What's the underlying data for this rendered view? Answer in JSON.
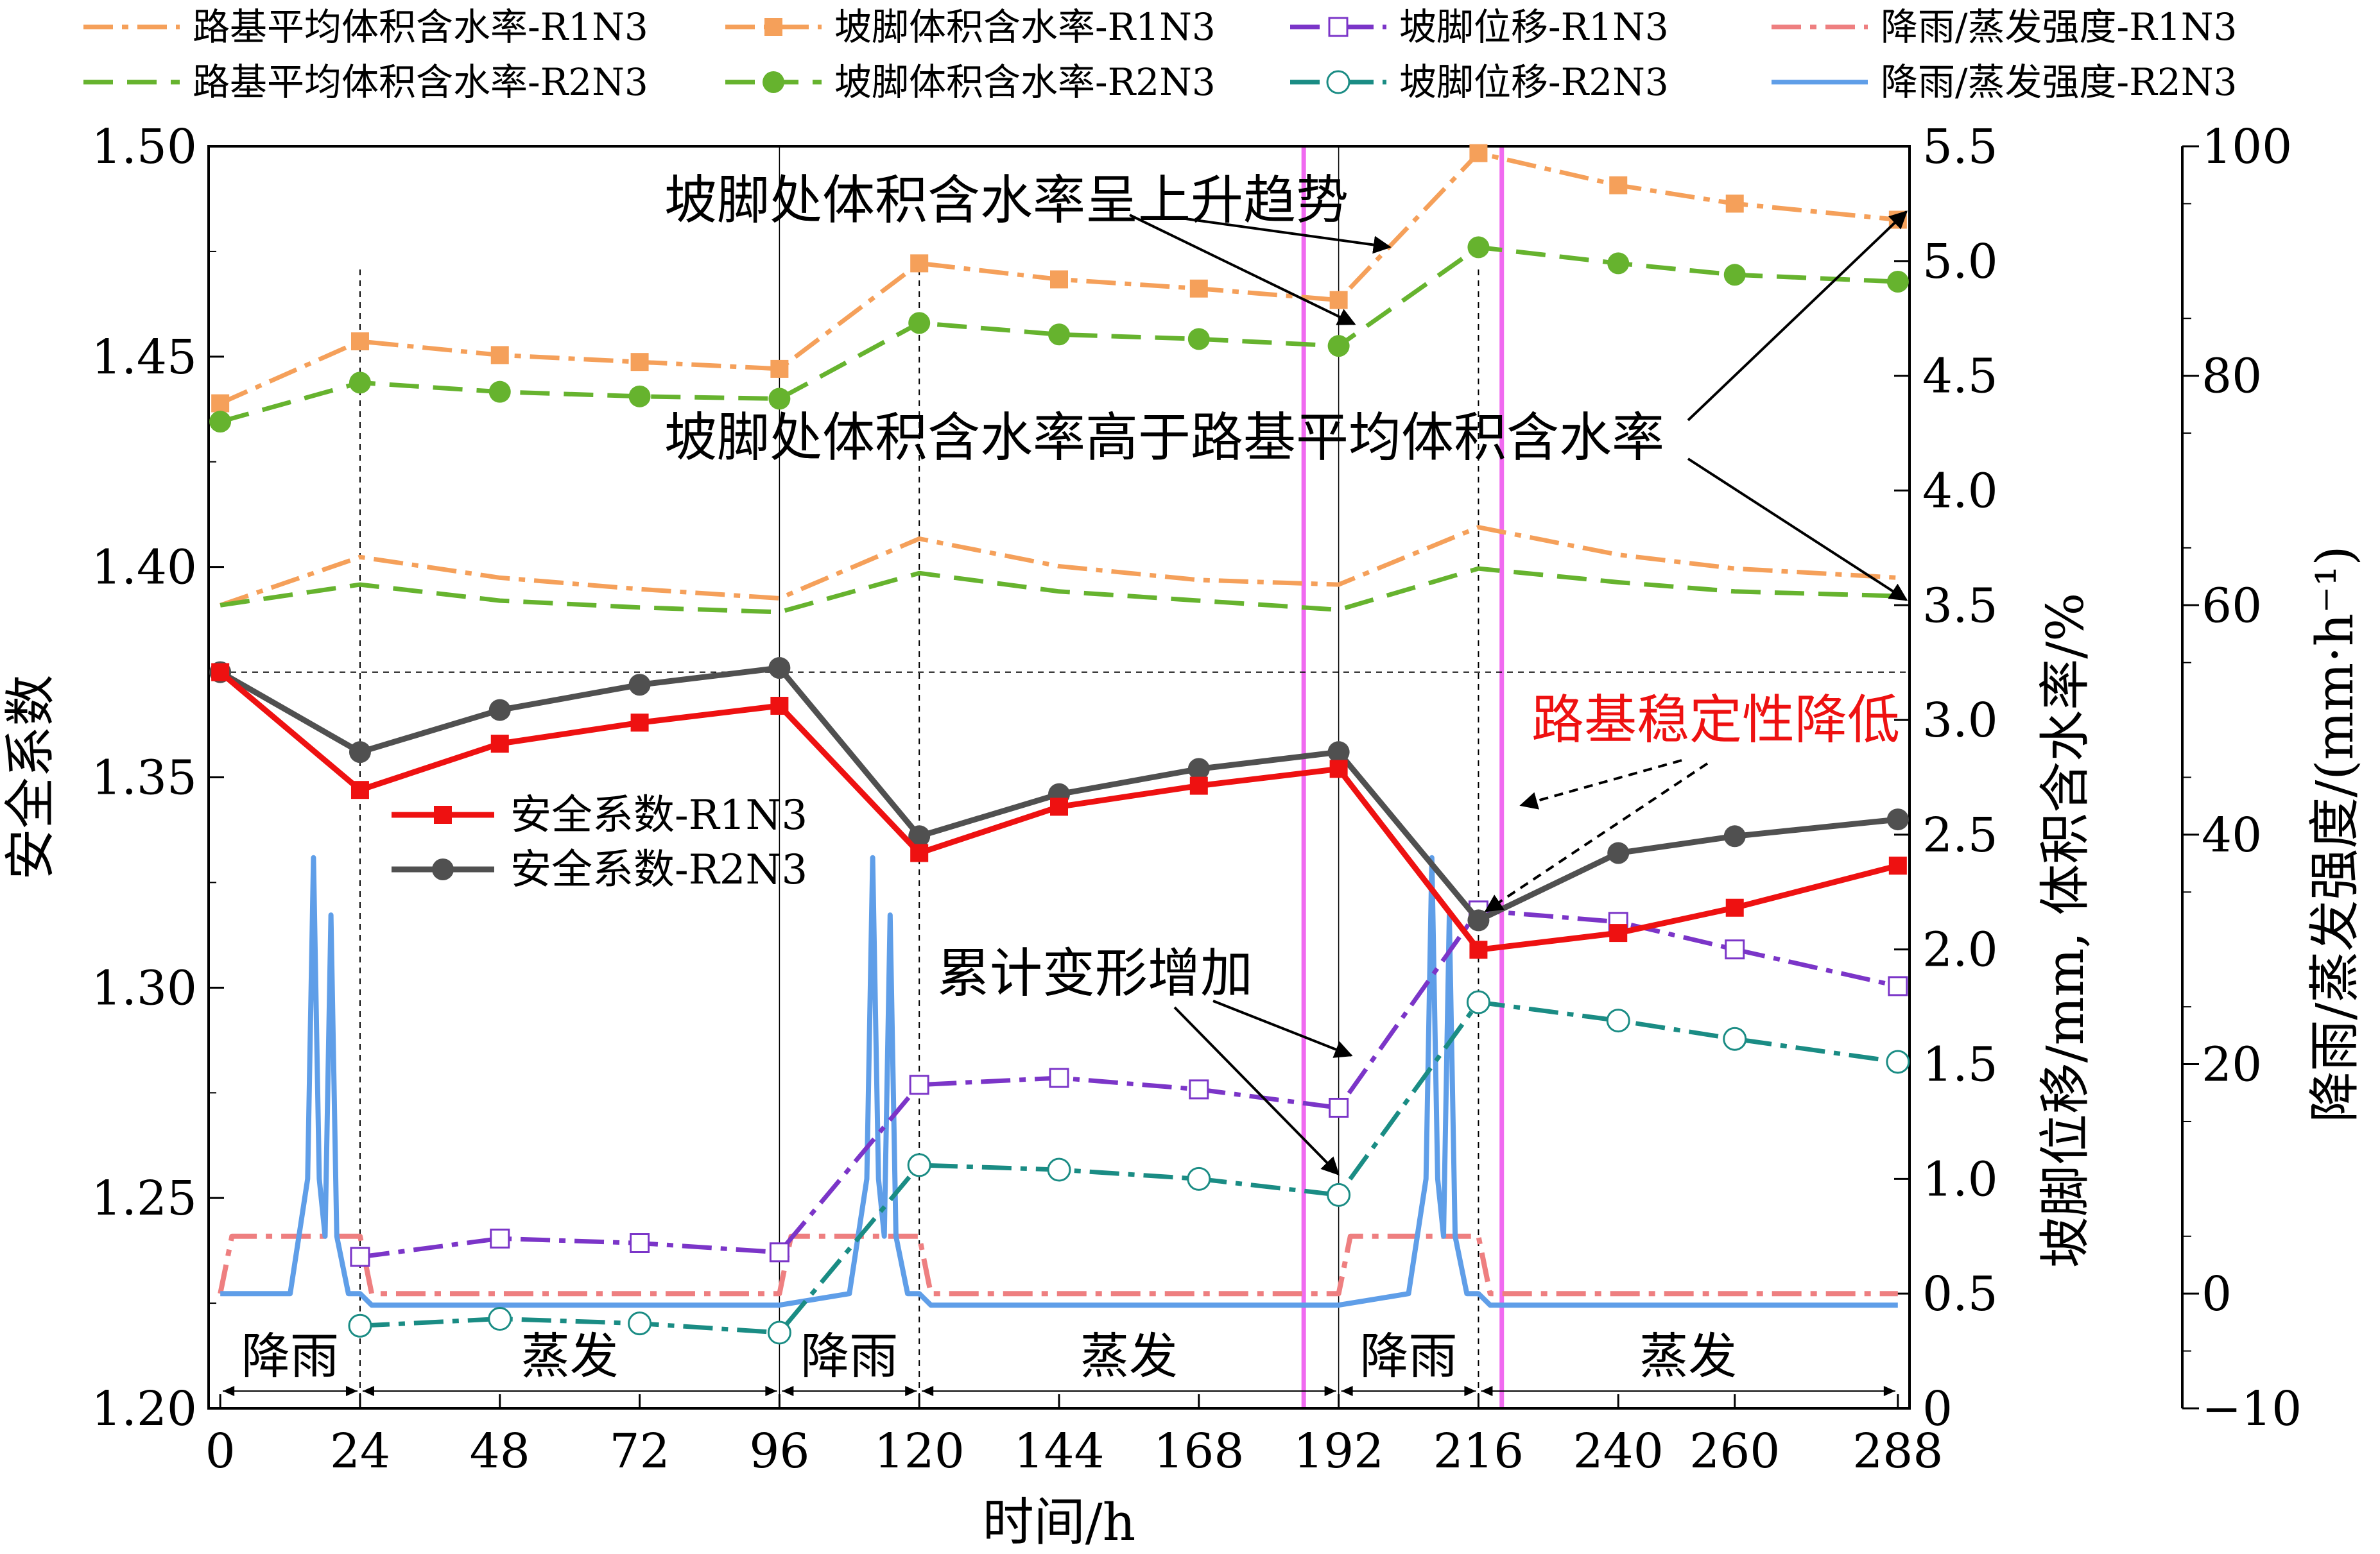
{
  "chart_data": {
    "type": "line",
    "xlabel": "时间/h",
    "ylabel_left": "安全系数",
    "ylabel_right1": "坡脚位移/mm, 体积含水率/%",
    "ylabel_right2": "降雨/蒸发强度/(mm·h⁻¹)",
    "xlim": [
      -2,
      290
    ],
    "ylim_left": [
      1.2,
      1.5
    ],
    "ylim_right1": [
      0,
      5.5
    ],
    "ylim_right2": [
      -10,
      100
    ],
    "x_ticks": [
      0,
      24,
      48,
      72,
      96,
      120,
      144,
      168,
      192,
      216,
      240,
      260,
      288
    ],
    "y_left_ticks": [
      1.2,
      1.25,
      1.3,
      1.35,
      1.4,
      1.45,
      1.5
    ],
    "y_right1_ticks": [
      0,
      0.5,
      1.0,
      1.5,
      2.0,
      2.5,
      3.0,
      3.5,
      4.0,
      4.5,
      5.0,
      5.5
    ],
    "y_right2_ticks": [
      -10,
      0,
      20,
      40,
      60,
      80,
      100
    ],
    "y_left_tick_labels": [
      "1.20",
      "1.25",
      "1.30",
      "1.35",
      "1.40",
      "1.45",
      "1.50"
    ],
    "y_right1_tick_labels": [
      "0",
      "0.5",
      "1.0",
      "1.5",
      "2.0",
      "2.5",
      "3.0",
      "3.5",
      "4.0",
      "4.5",
      "5.0",
      "5.5"
    ],
    "y_right2_tick_labels": [
      "−10",
      "0",
      "20",
      "40",
      "60",
      "80",
      "100"
    ],
    "grid": false,
    "reference_line_fos": 1.375,
    "series": [
      {
        "name": "路基平均体积含水率-R1N3",
        "axis": "right1",
        "style": "dashdot",
        "color": "#F5A05A",
        "marker": "none",
        "x": [
          0,
          24,
          48,
          72,
          96,
          120,
          144,
          168,
          192,
          216,
          240,
          260,
          288
        ],
        "y": [
          3.5,
          3.71,
          3.62,
          3.57,
          3.53,
          3.79,
          3.67,
          3.61,
          3.59,
          3.84,
          3.72,
          3.66,
          3.62
        ]
      },
      {
        "name": "坡脚体积含水率-R1N3",
        "axis": "right1",
        "style": "dashdot",
        "color": "#F5A05A",
        "marker": "square",
        "x": [
          0,
          24,
          48,
          72,
          96,
          120,
          144,
          168,
          192,
          216,
          240,
          260,
          288
        ],
        "y": [
          4.38,
          4.65,
          4.59,
          4.56,
          4.53,
          4.99,
          4.92,
          4.88,
          4.83,
          5.47,
          5.33,
          5.25,
          5.18
        ]
      },
      {
        "name": "坡脚位移-R1N3",
        "axis": "right1",
        "style": "dashdot",
        "color": "#7B35C8",
        "marker": "open-square",
        "x": [
          24,
          48,
          72,
          96,
          120,
          144,
          168,
          192,
          216,
          240,
          260,
          288
        ],
        "y": [
          0.66,
          0.74,
          0.72,
          0.68,
          1.41,
          1.44,
          1.39,
          1.31,
          2.17,
          2.12,
          2.0,
          1.84
        ]
      },
      {
        "name": "降雨/蒸发强度-R1N3",
        "axis": "right2",
        "style": "dashdot",
        "color": "#EE7F80",
        "marker": "none",
        "x": [
          0,
          2,
          24,
          26,
          96,
          98,
          120,
          122,
          192,
          194,
          216,
          218,
          288
        ],
        "y": [
          0,
          5,
          5,
          0,
          0,
          5,
          5,
          0,
          0,
          5,
          5,
          0,
          0
        ]
      },
      {
        "name": "路基平均体积含水率-R2N3",
        "axis": "right1",
        "style": "dashed",
        "color": "#66B32E",
        "marker": "none",
        "x": [
          0,
          24,
          48,
          72,
          96,
          120,
          144,
          168,
          192,
          216,
          240,
          260,
          288
        ],
        "y": [
          3.5,
          3.59,
          3.52,
          3.49,
          3.47,
          3.64,
          3.56,
          3.52,
          3.48,
          3.66,
          3.6,
          3.56,
          3.54
        ]
      },
      {
        "name": "坡脚体积含水率-R2N3",
        "axis": "right1",
        "style": "dashed",
        "color": "#66B32E",
        "marker": "circle",
        "x": [
          0,
          24,
          48,
          72,
          96,
          120,
          144,
          168,
          192,
          216,
          240,
          260,
          288
        ],
        "y": [
          4.3,
          4.47,
          4.43,
          4.41,
          4.4,
          4.73,
          4.68,
          4.66,
          4.63,
          5.06,
          4.99,
          4.94,
          4.91
        ]
      },
      {
        "name": "坡脚位移-R2N3",
        "axis": "right1",
        "style": "dashdot",
        "color": "#1A8C84",
        "marker": "open-circle",
        "x": [
          24,
          48,
          72,
          96,
          120,
          144,
          168,
          192,
          216,
          240,
          260,
          288
        ],
        "y": [
          0.36,
          0.39,
          0.37,
          0.33,
          1.06,
          1.04,
          1.0,
          0.93,
          1.77,
          1.69,
          1.61,
          1.51
        ]
      },
      {
        "name": "降雨/蒸发强度-R2N3",
        "axis": "right2",
        "style": "solid",
        "color": "#5F9EE8",
        "marker": "none",
        "x": [
          0,
          12,
          15,
          16,
          17,
          18,
          19,
          20,
          22,
          24,
          26,
          96,
          108,
          111,
          112,
          113,
          114,
          115,
          116,
          118,
          120,
          122,
          192,
          204,
          207,
          208,
          209,
          210,
          211,
          212,
          214,
          216,
          218,
          288
        ],
        "y": [
          0,
          0,
          10,
          38,
          10,
          5,
          33,
          5,
          0,
          0,
          -1,
          -1,
          0,
          10,
          38,
          10,
          5,
          33,
          5,
          0,
          0,
          -1,
          -1,
          0,
          10,
          38,
          10,
          5,
          33,
          5,
          0,
          0,
          -1,
          -1
        ]
      },
      {
        "name": "安全系数-R1N3",
        "axis": "left",
        "style": "solid",
        "color": "#EE1111",
        "marker": "square",
        "x": [
          0,
          24,
          48,
          72,
          96,
          120,
          144,
          168,
          192,
          216,
          240,
          260,
          288
        ],
        "y": [
          1.375,
          1.347,
          1.358,
          1.363,
          1.367,
          1.332,
          1.343,
          1.348,
          1.352,
          1.309,
          1.313,
          1.319,
          1.329
        ]
      },
      {
        "name": "安全系数-R2N3",
        "axis": "left",
        "style": "solid",
        "color": "#505050",
        "marker": "circle",
        "x": [
          0,
          24,
          48,
          72,
          96,
          120,
          144,
          168,
          192,
          216,
          240,
          260,
          288
        ],
        "y": [
          1.375,
          1.356,
          1.366,
          1.372,
          1.376,
          1.336,
          1.346,
          1.352,
          1.356,
          1.316,
          1.332,
          1.336,
          1.34
        ]
      }
    ],
    "phases": [
      {
        "label": "降雨",
        "start": 0,
        "end": 24
      },
      {
        "label": "蒸发",
        "start": 24,
        "end": 96
      },
      {
        "label": "降雨",
        "start": 96,
        "end": 120
      },
      {
        "label": "蒸发",
        "start": 120,
        "end": 192
      },
      {
        "label": "降雨",
        "start": 192,
        "end": 216
      },
      {
        "label": "蒸发",
        "start": 216,
        "end": 288
      }
    ],
    "magenta_lines_x": [
      186,
      220
    ],
    "annotations": [
      {
        "text": "坡脚处体积含水率呈上升趋势",
        "color": "#000000"
      },
      {
        "text": "坡脚处体积含水率高于路基平均体积含水率",
        "color": "#000000"
      },
      {
        "text": "路基稳定性降低",
        "color": "#EE1111"
      },
      {
        "text": "累计变形增加",
        "color": "#000000"
      }
    ]
  }
}
